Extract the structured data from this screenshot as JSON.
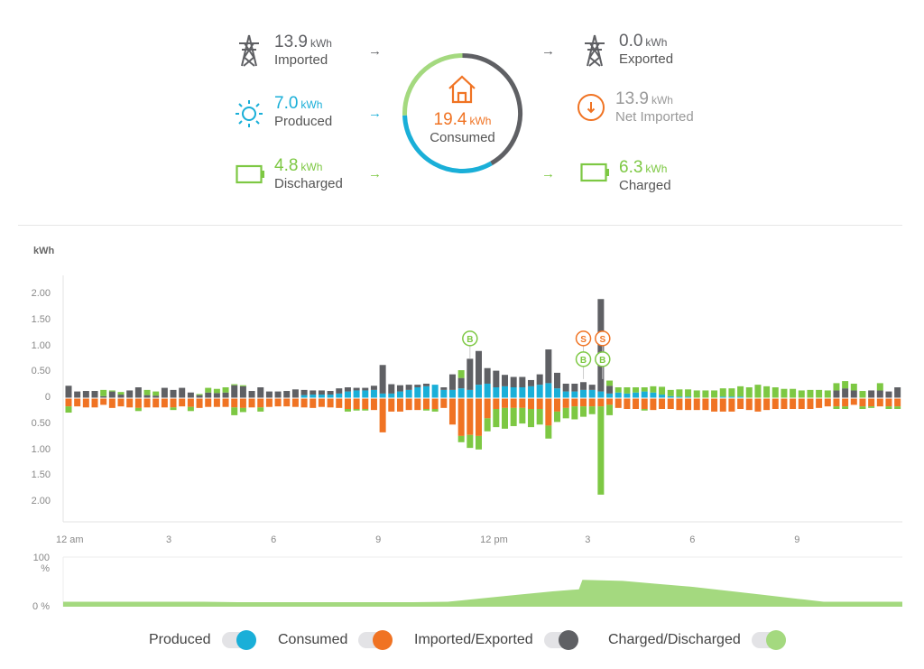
{
  "summary": {
    "imported": {
      "value": "13.9",
      "unit": "kWh",
      "label": "Imported"
    },
    "produced": {
      "value": "7.0",
      "unit": "kWh",
      "label": "Produced"
    },
    "discharged": {
      "value": "4.8",
      "unit": "kWh",
      "label": "Discharged"
    },
    "consumed": {
      "value": "19.4",
      "unit": "kWh",
      "label": "Consumed"
    },
    "exported": {
      "value": "0.0",
      "unit": "kWh",
      "label": "Exported"
    },
    "net_imported": {
      "value": "13.9",
      "unit": "kWh",
      "label": "Net Imported"
    },
    "charged": {
      "value": "6.3",
      "unit": "kWh",
      "label": "Charged"
    },
    "arrow": "→",
    "icons": {
      "grid": "transmission-tower-icon",
      "sun": "sun-icon",
      "battery": "battery-icon",
      "house": "house-icon",
      "net": "arrow-down-circle-icon"
    }
  },
  "colors": {
    "produced": "#1aafd8",
    "consumed": "#f07323",
    "grid": "#5f6064",
    "battery": "#7dc843",
    "battery_light": "#a4d97f",
    "text": "#555555"
  },
  "chart_data": [
    {
      "type": "bar",
      "ylabel": "kWh",
      "ylim": [
        -2.2,
        2.2
      ],
      "yticks": [
        "2.00",
        "1.50",
        "1.00",
        "0.50",
        "0",
        "0.50",
        "1.00",
        "1.50",
        "2.00"
      ],
      "ytick_values": [
        2,
        1.5,
        1,
        0.5,
        0,
        -0.5,
        -1,
        -1.5,
        -2
      ],
      "xticks": [
        "12 am",
        "3",
        "6",
        "9",
        "12 pm",
        "3",
        "6",
        "9"
      ],
      "xtick_hours": [
        0,
        3,
        6,
        9,
        12,
        15,
        18,
        21
      ],
      "interval_minutes": 15,
      "series": [
        {
          "name": "Produced",
          "key": "produced",
          "direction": "up",
          "values": [
            0,
            0,
            0,
            0,
            0,
            0,
            0,
            0,
            0,
            0,
            0,
            0,
            0,
            0,
            0,
            0,
            0,
            0,
            0,
            0,
            0,
            0,
            0,
            0,
            0,
            0,
            0,
            0.05,
            0.06,
            0.06,
            0.06,
            0.08,
            0.12,
            0.14,
            0.14,
            0.15,
            0.08,
            0.08,
            0.12,
            0.15,
            0.2,
            0.22,
            0.25,
            0.15,
            0.15,
            0.18,
            0.15,
            0.25,
            0.27,
            0.2,
            0.22,
            0.2,
            0.2,
            0.22,
            0.25,
            0.28,
            0.18,
            0.12,
            0.12,
            0.15,
            0.15,
            0.12,
            0.08,
            0.1,
            0.08,
            0.1,
            0.12,
            0.1,
            0.06,
            0.03,
            0.02,
            0.02,
            0,
            0,
            0,
            0.02,
            0.02,
            0.02,
            0,
            0,
            0,
            0,
            0,
            0,
            0,
            0,
            0,
            0,
            0,
            0,
            0,
            0,
            0,
            0,
            0,
            0
          ]
        },
        {
          "name": "Imported/Exported",
          "key": "grid",
          "direction": "up",
          "values": [
            0.23,
            0.12,
            0.13,
            0.13,
            0.03,
            0.12,
            0.06,
            0.14,
            0.2,
            0.05,
            0.04,
            0.19,
            0.15,
            0.19,
            0.1,
            0.05,
            0.1,
            0.09,
            0.1,
            0.24,
            0.22,
            0.13,
            0.2,
            0.12,
            0.12,
            0.13,
            0.16,
            0.1,
            0.08,
            0.08,
            0.07,
            0.1,
            0.08,
            0.05,
            0.05,
            0.08,
            0.55,
            0.18,
            0.12,
            0.1,
            0.05,
            0.05,
            0,
            0.05,
            0.3,
            0.2,
            0.6,
            0.65,
            0.3,
            0.32,
            0.22,
            0.2,
            0.2,
            0.12,
            0.2,
            0.65,
            0.3,
            0.15,
            0.15,
            0.15,
            0.1,
            1.78,
            0.15,
            0,
            0,
            0,
            0,
            0,
            0,
            0,
            0,
            0,
            0,
            0,
            0,
            0,
            0,
            0,
            0,
            0,
            0,
            0,
            0,
            0,
            0,
            0,
            0,
            0,
            0.14,
            0.18,
            0.14,
            0,
            0.14,
            0.14,
            0.12,
            0.2
          ]
        },
        {
          "name": "Discharged",
          "key": "battery",
          "direction": "up",
          "values": [
            0,
            0,
            0,
            0,
            0.12,
            0.02,
            0.05,
            0,
            0,
            0.1,
            0.08,
            0,
            0,
            0,
            0,
            0.02,
            0.09,
            0.08,
            0.1,
            0.02,
            0.02,
            0,
            0,
            0,
            0,
            0,
            0,
            0,
            0,
            0,
            0,
            0,
            0,
            0,
            0,
            0,
            0,
            0,
            0,
            0,
            0,
            0,
            0,
            0,
            0,
            0.15,
            0,
            0,
            0,
            0,
            0,
            0,
            0,
            0,
            0,
            0,
            0,
            0,
            0,
            0,
            0,
            0,
            0.1,
            0.1,
            0.12,
            0.1,
            0.08,
            0.12,
            0.15,
            0.12,
            0.14,
            0.14,
            0.14,
            0.14,
            0.14,
            0.16,
            0.16,
            0.2,
            0.2,
            0.25,
            0.22,
            0.2,
            0.17,
            0.17,
            0.14,
            0.15,
            0.15,
            0.14,
            0.14,
            0.14,
            0.13,
            0.13,
            0,
            0.14,
            0,
            0
          ]
        },
        {
          "name": "Consumed",
          "key": "consumed",
          "direction": "down",
          "values": [
            0.15,
            0.15,
            0.17,
            0.17,
            0.12,
            0.18,
            0.15,
            0.17,
            0.18,
            0.17,
            0.17,
            0.17,
            0.17,
            0.15,
            0.16,
            0.18,
            0.16,
            0.16,
            0.16,
            0.17,
            0.18,
            0.17,
            0.17,
            0.16,
            0.15,
            0.15,
            0.16,
            0.17,
            0.18,
            0.16,
            0.17,
            0.18,
            0.2,
            0.2,
            0.2,
            0.22,
            0.65,
            0.25,
            0.25,
            0.22,
            0.22,
            0.2,
            0.2,
            0.18,
            0.5,
            0.72,
            0.7,
            0.72,
            0.38,
            0.2,
            0.18,
            0.18,
            0.18,
            0.2,
            0.2,
            0.52,
            0.25,
            0.18,
            0.15,
            0.15,
            0.15,
            0.15,
            0.12,
            0.18,
            0.2,
            0.2,
            0.2,
            0.22,
            0.2,
            0.2,
            0.22,
            0.22,
            0.22,
            0.22,
            0.25,
            0.25,
            0.25,
            0.2,
            0.22,
            0.25,
            0.22,
            0.2,
            0.2,
            0.2,
            0.2,
            0.2,
            0.18,
            0.15,
            0.15,
            0.15,
            0.12,
            0.15,
            0.15,
            0.15,
            0.15,
            0.15
          ]
        },
        {
          "name": "Charged",
          "key": "battery",
          "direction": "down",
          "values": [
            0.12,
            0,
            0,
            0,
            0,
            0,
            0,
            0,
            0.06,
            0,
            0,
            0,
            0.05,
            0,
            0.08,
            0,
            0,
            0,
            0,
            0.15,
            0.08,
            0,
            0.08,
            0,
            0,
            0,
            0,
            0,
            0,
            0,
            0,
            0,
            0.05,
            0.03,
            0.03,
            0,
            0,
            0,
            0,
            0,
            0,
            0.03,
            0.05,
            0,
            0,
            0.12,
            0.25,
            0.26,
            0.25,
            0.35,
            0.4,
            0.35,
            0.3,
            0.35,
            0.3,
            0.25,
            0.2,
            0.2,
            0.25,
            0.2,
            0.15,
            1.7,
            0.2,
            0,
            0,
            0,
            0.03,
            0,
            0,
            0,
            0,
            0,
            0,
            0,
            0,
            0,
            0,
            0,
            0,
            0,
            0,
            0,
            0,
            0,
            0,
            0,
            0,
            0,
            0.05,
            0.05,
            0,
            0.05,
            0.03,
            0,
            0.05,
            0.05
          ]
        }
      ],
      "markers": [
        {
          "label": "B",
          "index": 46,
          "value": 1.15,
          "color": "battery"
        },
        {
          "label": "S",
          "index": 59,
          "value": 1.15,
          "color": "consumed"
        },
        {
          "label": "S",
          "index": 61.2,
          "value": 1.15,
          "color": "consumed"
        },
        {
          "label": "B",
          "index": 59,
          "value": 0.75,
          "color": "battery"
        },
        {
          "label": "B",
          "index": 61.2,
          "value": 0.75,
          "color": "battery"
        }
      ]
    },
    {
      "type": "area",
      "ylim": [
        0,
        100
      ],
      "yticks": [
        "100 %",
        "0 %"
      ],
      "x_hours": [
        0,
        1,
        2,
        3,
        4,
        5,
        6,
        7,
        8,
        9,
        10,
        11,
        12,
        13,
        14,
        14.75,
        14.85,
        16,
        17,
        18,
        19,
        20,
        21,
        21.75,
        22,
        23,
        24
      ],
      "values": [
        10,
        10,
        10,
        10,
        10,
        9,
        9,
        9,
        9,
        9,
        9,
        10,
        17,
        24,
        31,
        35,
        54,
        52,
        46,
        40,
        32,
        24,
        16,
        10,
        10,
        10,
        10
      ]
    }
  ],
  "legend": [
    {
      "label": "Produced",
      "key": "produced",
      "on": true
    },
    {
      "label": "Consumed",
      "key": "consumed",
      "on": true
    },
    {
      "label": "Imported/Exported",
      "key": "grid",
      "on": true
    },
    {
      "label": "Charged/Discharged",
      "key": "battery_light",
      "on": true
    }
  ]
}
